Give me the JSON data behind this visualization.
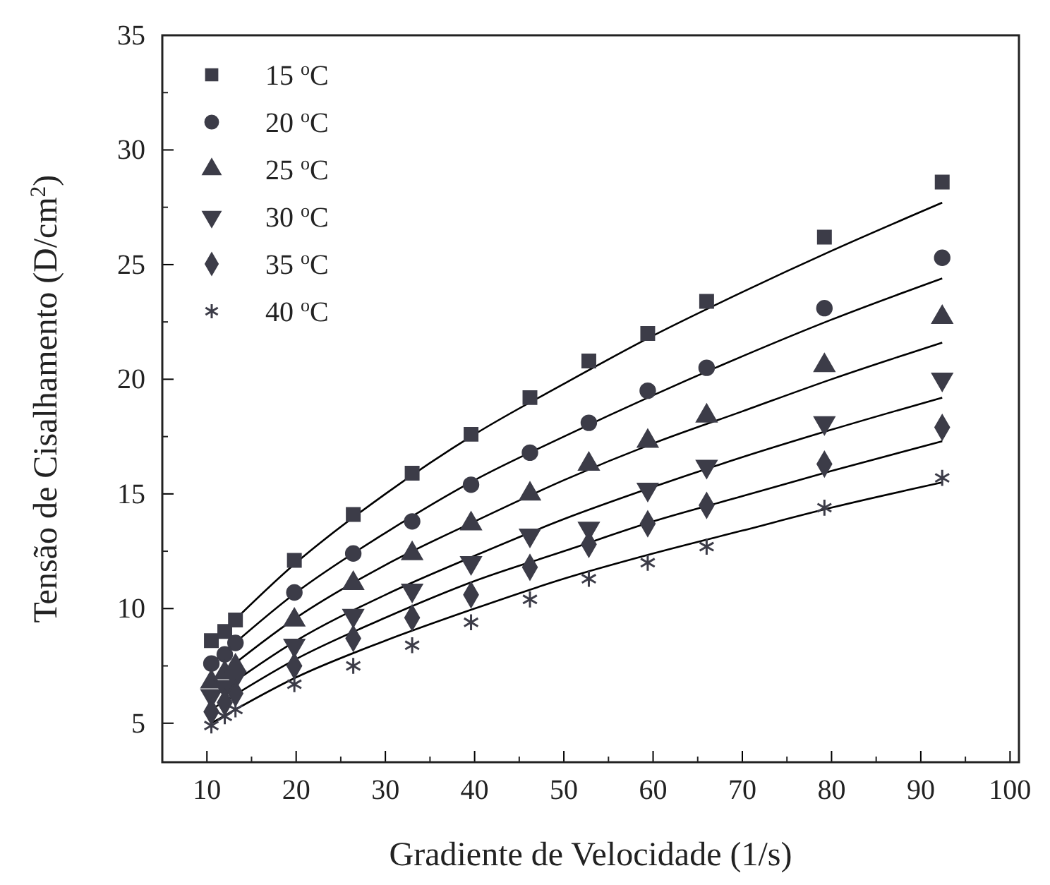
{
  "chart_data": {
    "type": "scatter",
    "xlabel": "Gradiente de Velocidade (1/s)",
    "ylabel": "Tensão de Cisalhamento (D/cm$^{2}$)",
    "x": [
      10.5,
      12,
      13.2,
      19.8,
      26.4,
      33,
      39.6,
      46.2,
      52.8,
      59.4,
      66,
      79.2,
      92.4
    ],
    "xlim": [
      5,
      101
    ],
    "xticks": [
      10,
      20,
      30,
      40,
      50,
      60,
      70,
      80,
      90,
      100
    ],
    "ylim": [
      3.3,
      35
    ],
    "yticks": [
      5,
      10,
      15,
      20,
      25,
      30,
      35
    ],
    "grid": false,
    "legend": "top left",
    "series": [
      {
        "name": "15 $^{o}$C",
        "marker": "square",
        "color": "#3c3c48",
        "values": [
          8.6,
          9.0,
          9.5,
          12.1,
          14.1,
          15.9,
          17.6,
          19.2,
          20.8,
          22.0,
          23.4,
          26.2,
          28.6
        ]
      },
      {
        "name": "20 $^{o}$C",
        "marker": "circle",
        "color": "#3c3c48",
        "values": [
          7.6,
          8.0,
          8.5,
          10.7,
          12.4,
          13.8,
          15.4,
          16.8,
          18.1,
          19.5,
          20.5,
          23.1,
          25.3
        ]
      },
      {
        "name": "25 $^{o}$C",
        "marker": "triangle",
        "color": "#3c3c48",
        "values": [
          6.8,
          7.2,
          7.5,
          9.5,
          11.1,
          12.4,
          13.7,
          15.0,
          16.3,
          17.3,
          18.4,
          20.6,
          22.7
        ]
      },
      {
        "name": "30 $^{o}$C",
        "marker": "triangle-down",
        "color": "#3c3c48",
        "values": [
          6.2,
          6.6,
          7.0,
          8.4,
          9.7,
          10.8,
          12.0,
          13.2,
          13.5,
          15.2,
          16.2,
          18.1,
          20.0
        ]
      },
      {
        "name": "35 $^{o}$C",
        "marker": "diamond",
        "color": "#3c3c48",
        "values": [
          5.5,
          5.9,
          6.3,
          7.5,
          8.7,
          9.6,
          10.6,
          11.8,
          12.8,
          13.7,
          14.5,
          16.3,
          17.9
        ]
      },
      {
        "name": "40 $^{o}$C",
        "marker": "cross",
        "color": "#3c3c48",
        "values": [
          4.9,
          5.3,
          5.6,
          6.7,
          7.5,
          8.4,
          9.4,
          10.4,
          11.3,
          12.0,
          12.7,
          14.4,
          15.7
        ]
      },
      {
        "type": "line",
        "marker": "none",
        "line_style": "solid",
        "color": "#000000",
        "x": [
          10.5,
          20,
          30,
          40,
          50,
          60,
          70,
          80,
          92.4
        ],
        "values": [
          8.5,
          12.0,
          15.0,
          17.6,
          19.8,
          21.9,
          23.8,
          25.6,
          27.7
        ]
      },
      {
        "type": "line",
        "marker": "none",
        "line_style": "solid",
        "color": "#000000",
        "x": [
          10.5,
          20,
          30,
          40,
          50,
          60,
          70,
          80,
          92.4
        ],
        "values": [
          7.6,
          10.7,
          13.3,
          15.6,
          17.5,
          19.3,
          21.0,
          22.6,
          24.4
        ]
      },
      {
        "type": "line",
        "marker": "none",
        "line_style": "solid",
        "color": "#000000",
        "x": [
          10.5,
          20,
          30,
          40,
          50,
          60,
          70,
          80,
          92.4
        ],
        "values": [
          6.8,
          9.6,
          11.9,
          13.8,
          15.6,
          17.2,
          18.6,
          20.0,
          21.6
        ]
      },
      {
        "type": "line",
        "marker": "none",
        "line_style": "solid",
        "color": "#000000",
        "x": [
          10.5,
          20,
          30,
          40,
          50,
          60,
          70,
          80,
          92.4
        ],
        "values": [
          6.1,
          8.6,
          10.6,
          12.3,
          13.9,
          15.3,
          16.6,
          17.8,
          19.2
        ]
      },
      {
        "type": "line",
        "marker": "none",
        "line_style": "solid",
        "color": "#000000",
        "x": [
          10.5,
          20,
          30,
          40,
          50,
          60,
          70,
          80,
          92.4
        ],
        "values": [
          5.6,
          7.8,
          9.6,
          11.2,
          12.5,
          13.8,
          14.9,
          16.0,
          17.3
        ]
      },
      {
        "type": "line",
        "marker": "none",
        "line_style": "solid",
        "color": "#000000",
        "x": [
          10.5,
          20,
          30,
          40,
          50,
          60,
          70,
          80,
          92.4
        ],
        "values": [
          5.0,
          7.0,
          8.6,
          10.0,
          11.3,
          12.4,
          13.4,
          14.4,
          15.5
        ]
      }
    ]
  }
}
